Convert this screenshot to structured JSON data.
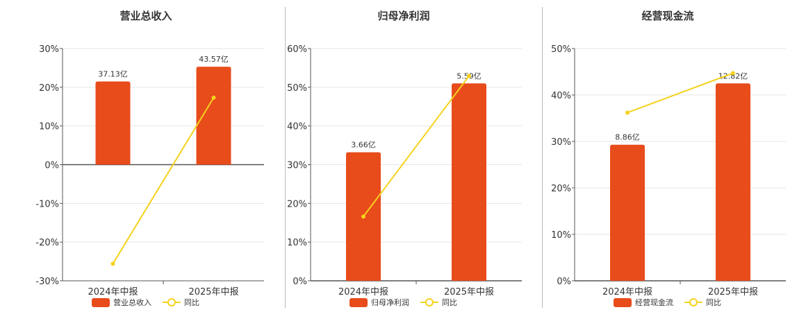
{
  "colors": {
    "bar": "#E84C1B",
    "line": "#F5D21C",
    "grid": "#e6e6e6",
    "axis": "#555555",
    "separator": "#b9b9b9"
  },
  "chart_data": [
    {
      "type": "bar",
      "title": "营业总收入",
      "categories": [
        "2024年中报",
        "2025年中报"
      ],
      "series": [
        {
          "name": "营业总收入",
          "type": "bar",
          "values": [
            21.5,
            25.3
          ],
          "labels": [
            "37.13亿",
            "43.57亿"
          ]
        },
        {
          "name": "同比",
          "type": "line",
          "values": [
            -25.6,
            17.3
          ]
        }
      ],
      "y_ticks": [
        "30%",
        "20%",
        "10%",
        "0%",
        "-10%",
        "-20%",
        "-30%"
      ],
      "ylim": [
        -30,
        30
      ],
      "grid": true,
      "legend": "bottom"
    },
    {
      "type": "bar",
      "title": "归母净利润",
      "categories": [
        "2024年中报",
        "2025年中报"
      ],
      "series": [
        {
          "name": "归母净利润",
          "type": "bar",
          "values": [
            33.2,
            51.0
          ],
          "labels": [
            "3.66亿",
            "5.59亿"
          ]
        },
        {
          "name": "同比",
          "type": "line",
          "values": [
            16.6,
            52.9
          ]
        }
      ],
      "y_ticks": [
        "60%",
        "50%",
        "40%",
        "30%",
        "20%",
        "10%",
        "0%"
      ],
      "ylim": [
        0,
        60
      ],
      "grid": true,
      "legend": "bottom"
    },
    {
      "type": "bar",
      "title": "经营现金流",
      "categories": [
        "2024年中报",
        "2025年中报"
      ],
      "series": [
        {
          "name": "经营现金流",
          "type": "bar",
          "values": [
            29.3,
            42.5
          ],
          "labels": [
            "8.86亿",
            "12.82亿"
          ]
        },
        {
          "name": "同比",
          "type": "line",
          "values": [
            36.2,
            44.7
          ]
        }
      ],
      "y_ticks": [
        "50%",
        "40%",
        "30%",
        "20%",
        "10%",
        "0%"
      ],
      "ylim": [
        0,
        50
      ],
      "grid": true,
      "legend": "bottom"
    }
  ]
}
